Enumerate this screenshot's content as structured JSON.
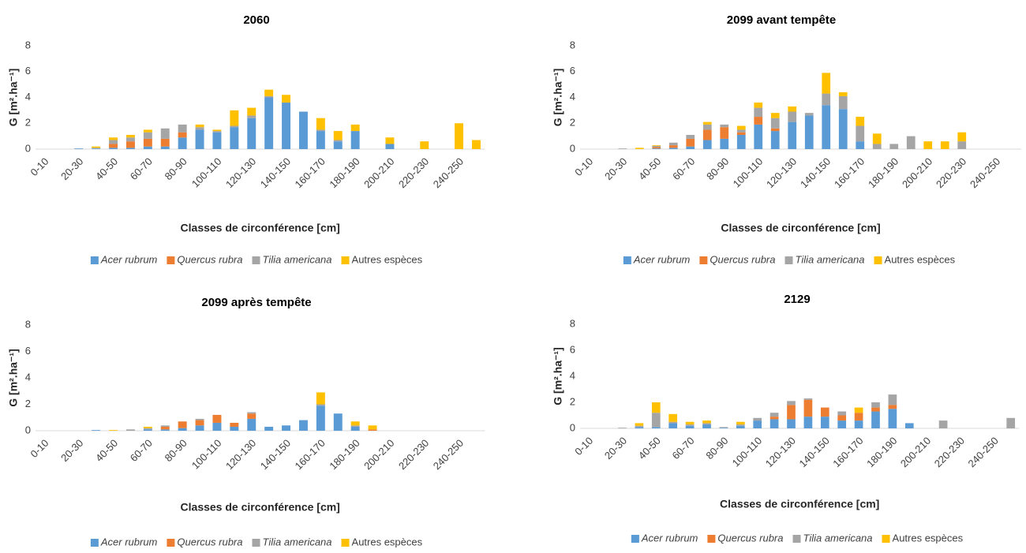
{
  "chart_data": [
    {
      "type": "bar",
      "stacked": true,
      "title": "2060",
      "x_label": "Classes de circonférence [cm]",
      "y_label": "G [m².ha⁻¹]",
      "categories": [
        "0-10",
        null,
        "20-30",
        null,
        "40-50",
        null,
        "60-70",
        null,
        "80-90",
        null,
        "100-110",
        null,
        "120-130",
        null,
        "140-150",
        null,
        "160-170",
        null,
        "180-190",
        null,
        "200-210",
        null,
        "220-230",
        null,
        "240-250",
        null
      ],
      "ylim": [
        0,
        8
      ],
      "yticks": [
        0,
        2,
        4,
        6,
        8
      ],
      "grid": false,
      "series": [
        {
          "name": "Acer rubrum",
          "italic": true,
          "color": "#5b9bd5",
          "values": [
            0,
            0,
            0.05,
            0.05,
            0.1,
            0.1,
            0.2,
            0.2,
            0.9,
            1.5,
            1.3,
            1.7,
            2.4,
            4.0,
            3.6,
            2.9,
            1.4,
            0.6,
            1.4,
            0,
            0.4,
            0,
            0,
            0,
            0,
            0
          ]
        },
        {
          "name": "Quercus rubra",
          "italic": true,
          "color": "#ed7d31",
          "values": [
            0,
            0,
            0,
            0,
            0.3,
            0.5,
            0.6,
            0.6,
            0.4,
            0,
            0,
            0,
            0,
            0,
            0,
            0,
            0,
            0,
            0,
            0,
            0,
            0,
            0,
            0,
            0,
            0
          ]
        },
        {
          "name": "Tilia americana",
          "italic": true,
          "color": "#a5a5a5",
          "values": [
            0,
            0,
            0,
            0.05,
            0.3,
            0.3,
            0.5,
            0.8,
            0.6,
            0.2,
            0.1,
            0.1,
            0.2,
            0.1,
            0,
            0,
            0.1,
            0.1,
            0,
            0,
            0,
            0,
            0,
            0,
            0,
            0
          ]
        },
        {
          "name": "Autres espèces",
          "italic": false,
          "color": "#ffc000",
          "values": [
            0,
            0,
            0,
            0.1,
            0.2,
            0.2,
            0.2,
            0,
            0,
            0.2,
            0.1,
            1.2,
            0.6,
            0.5,
            0.6,
            0,
            0.9,
            0.7,
            0.5,
            0,
            0.5,
            0,
            0.6,
            0,
            2.0,
            0.7
          ]
        }
      ]
    },
    {
      "type": "bar",
      "stacked": true,
      "title": "2099 avant tempête",
      "x_label": "Classes de circonférence [cm]",
      "y_label": "G [m².ha⁻¹]",
      "categories": [
        "0-10",
        null,
        "20-30",
        null,
        "40-50",
        null,
        "60-70",
        null,
        "80-90",
        null,
        "100-110",
        null,
        "120-130",
        null,
        "140-150",
        null,
        "160-170",
        null,
        "180-190",
        null,
        "200-210",
        null,
        "220-230",
        null,
        "240-250",
        null
      ],
      "ylim": [
        0,
        8
      ],
      "yticks": [
        0,
        2,
        4,
        6,
        8
      ],
      "grid": false,
      "series": [
        {
          "name": "Acer rubrum",
          "italic": true,
          "color": "#5b9bd5",
          "values": [
            0,
            0,
            0,
            0,
            0.05,
            0.1,
            0.2,
            0.7,
            0.8,
            1.1,
            1.9,
            1.4,
            2.1,
            2.6,
            3.4,
            3.1,
            0.6,
            0,
            0,
            0,
            0,
            0,
            0,
            0,
            0,
            0
          ]
        },
        {
          "name": "Quercus rubra",
          "italic": true,
          "color": "#ed7d31",
          "values": [
            0,
            0,
            0,
            0,
            0.1,
            0.2,
            0.6,
            0.8,
            0.9,
            0.2,
            0.6,
            0.2,
            0,
            0,
            0,
            0,
            0,
            0,
            0,
            0,
            0,
            0,
            0,
            0,
            0,
            0
          ]
        },
        {
          "name": "Tilia americana",
          "italic": true,
          "color": "#a5a5a5",
          "values": [
            0,
            0,
            0.05,
            0,
            0.1,
            0.2,
            0.3,
            0.4,
            0.2,
            0.2,
            0.7,
            0.8,
            0.8,
            0.2,
            0.9,
            1.0,
            1.2,
            0.4,
            0.4,
            1.0,
            0,
            0,
            0.6,
            0,
            0,
            0
          ]
        },
        {
          "name": "Autres espèces",
          "italic": false,
          "color": "#ffc000",
          "values": [
            0,
            0,
            0,
            0.1,
            0.05,
            0,
            0,
            0.2,
            0,
            0.3,
            0.4,
            0.4,
            0.4,
            0,
            1.6,
            0.3,
            0.7,
            0.8,
            0,
            0,
            0.6,
            0.6,
            0.7,
            0,
            0,
            0
          ]
        }
      ]
    },
    {
      "type": "bar",
      "stacked": true,
      "title": "2099 après tempête",
      "x_label": "Classes de circonférence [cm]",
      "y_label": "G [m².ha⁻¹]",
      "categories": [
        "0-10",
        null,
        "20-30",
        null,
        "40-50",
        null,
        "60-70",
        null,
        "80-90",
        null,
        "100-110",
        null,
        "120-130",
        null,
        "140-150",
        null,
        "160-170",
        null,
        "180-190",
        null,
        "200-210",
        null,
        "220-230",
        null,
        "240-250",
        null
      ],
      "ylim": [
        0,
        8
      ],
      "yticks": [
        0,
        2,
        4,
        6,
        8
      ],
      "grid": false,
      "series": [
        {
          "name": "Acer rubrum",
          "italic": true,
          "color": "#5b9bd5",
          "values": [
            0,
            0,
            0,
            0.05,
            0,
            0,
            0.1,
            0.1,
            0.2,
            0.4,
            0.6,
            0.3,
            0.9,
            0.3,
            0.4,
            0.8,
            1.9,
            1.3,
            0.3,
            0,
            0,
            0,
            0,
            0,
            0,
            0
          ]
        },
        {
          "name": "Quercus rubra",
          "italic": true,
          "color": "#ed7d31",
          "values": [
            0,
            0,
            0,
            0,
            0,
            0,
            0,
            0.2,
            0.5,
            0.4,
            0.6,
            0.3,
            0.4,
            0,
            0,
            0,
            0,
            0,
            0,
            0.1,
            0,
            0,
            0,
            0,
            0,
            0
          ]
        },
        {
          "name": "Tilia americana",
          "italic": true,
          "color": "#a5a5a5",
          "values": [
            0,
            0,
            0,
            0,
            0,
            0.1,
            0.1,
            0.1,
            0,
            0.1,
            0,
            0,
            0.1,
            0,
            0,
            0,
            0.1,
            0,
            0.1,
            0,
            0,
            0,
            0,
            0,
            0,
            0
          ]
        },
        {
          "name": "Autres espèces",
          "italic": false,
          "color": "#ffc000",
          "values": [
            0,
            0,
            0,
            0,
            0.05,
            0,
            0.1,
            0,
            0,
            0,
            0,
            0,
            0,
            0,
            0,
            0,
            0.9,
            0,
            0.3,
            0.3,
            0,
            0,
            0,
            0,
            0,
            0
          ]
        }
      ]
    },
    {
      "type": "bar",
      "stacked": true,
      "title": "2129",
      "x_label": "Classes de circonférence [cm]",
      "y_label": "G [m².ha⁻¹]",
      "categories": [
        "0-10",
        null,
        "20-30",
        null,
        "40-50",
        null,
        "60-70",
        null,
        "80-90",
        null,
        "100-110",
        null,
        "120-130",
        null,
        "140-150",
        null,
        "160-170",
        null,
        "180-190",
        null,
        "200-210",
        null,
        "220-230",
        null,
        "240-250",
        null
      ],
      "ylim": [
        0,
        8
      ],
      "yticks": [
        0,
        2,
        4,
        6,
        8
      ],
      "grid": false,
      "series": [
        {
          "name": "Acer rubrum",
          "italic": true,
          "color": "#5b9bd5",
          "values": [
            0,
            0,
            0,
            0.1,
            0.1,
            0.4,
            0.2,
            0.3,
            0.05,
            0.2,
            0.6,
            0.7,
            0.7,
            0.9,
            0.9,
            0.6,
            0.6,
            1.3,
            1.5,
            0.4,
            0,
            0,
            0,
            0,
            0,
            0
          ]
        },
        {
          "name": "Quercus rubra",
          "italic": true,
          "color": "#ed7d31",
          "values": [
            0,
            0,
            0,
            0,
            0,
            0,
            0,
            0,
            0,
            0,
            0,
            0.2,
            1.1,
            1.3,
            0.7,
            0.4,
            0.6,
            0.3,
            0.3,
            0,
            0,
            0,
            0,
            0,
            0,
            0
          ]
        },
        {
          "name": "Tilia americana",
          "italic": true,
          "color": "#a5a5a5",
          "values": [
            0,
            0,
            0.05,
            0.1,
            1.1,
            0.1,
            0.1,
            0.1,
            0.05,
            0.1,
            0.2,
            0.3,
            0.3,
            0.1,
            0,
            0.3,
            0,
            0.4,
            0.8,
            0,
            0,
            0.6,
            0,
            0,
            0,
            0.8
          ]
        },
        {
          "name": "Autres espèces",
          "italic": false,
          "color": "#ffc000",
          "values": [
            0,
            0,
            0,
            0.2,
            0.8,
            0.6,
            0.2,
            0.2,
            0,
            0.2,
            0,
            0,
            0,
            0,
            0,
            0,
            0.4,
            0,
            0,
            0,
            0,
            0,
            0,
            0,
            0,
            0
          ]
        }
      ]
    }
  ]
}
